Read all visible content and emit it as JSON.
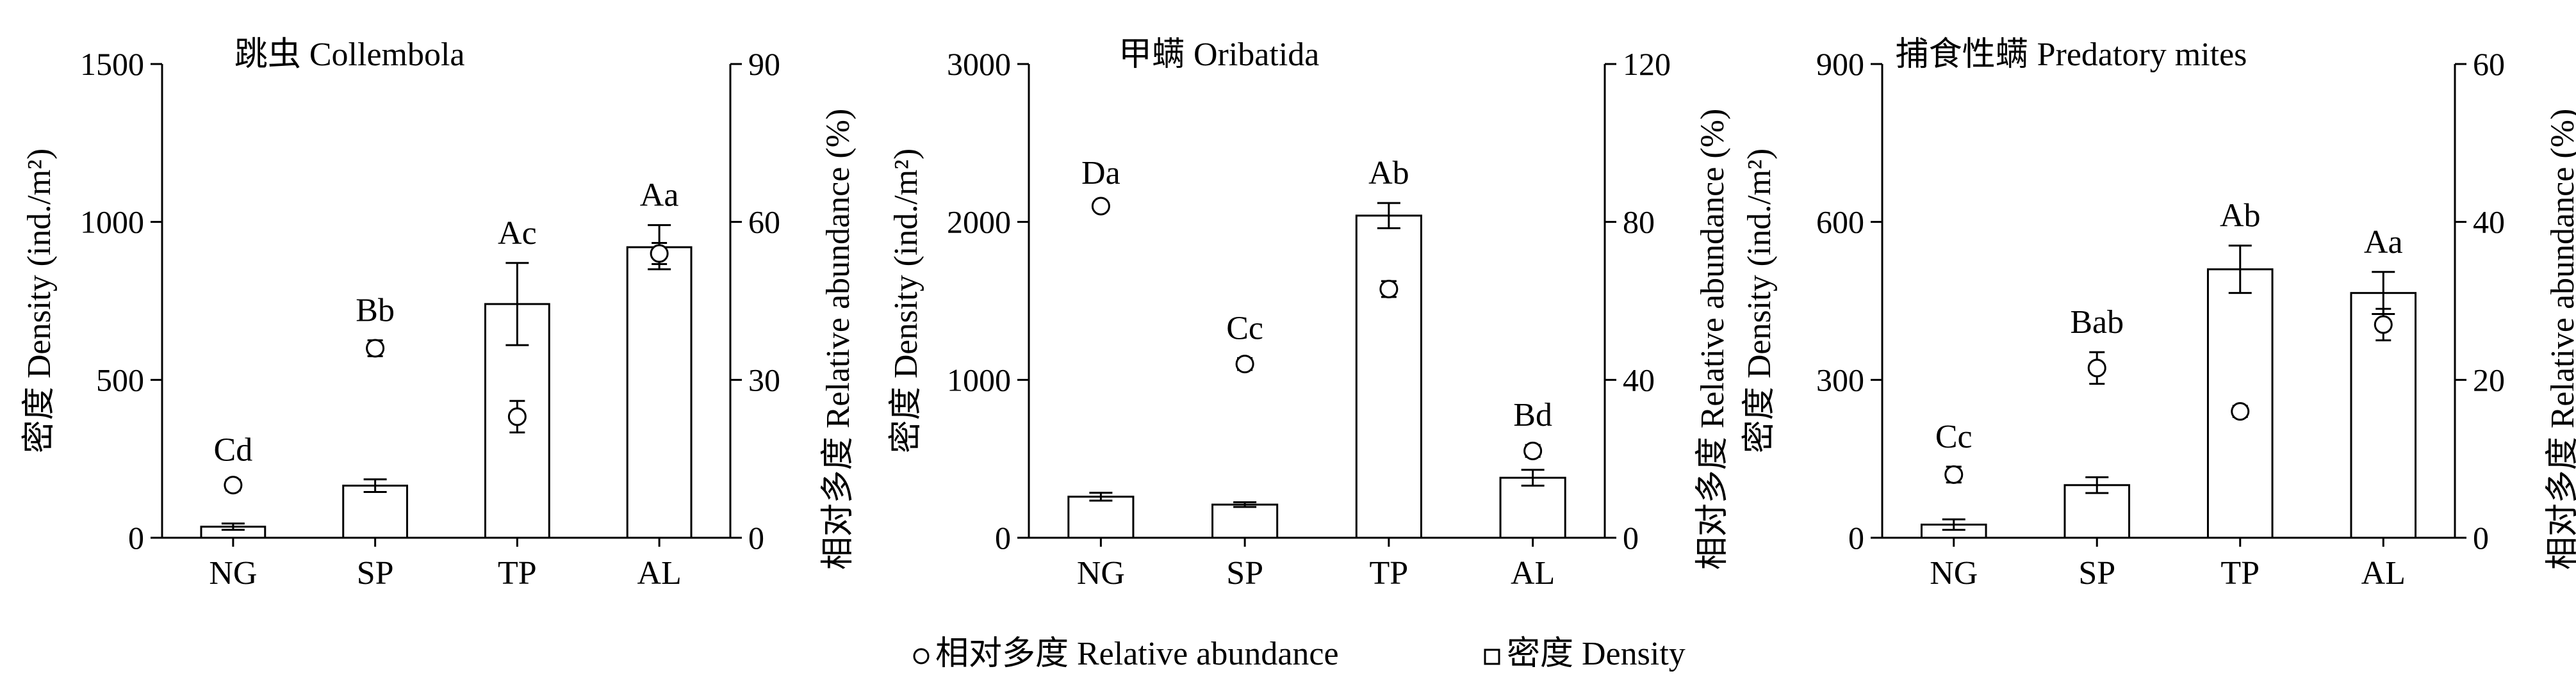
{
  "legend": {
    "abundance_label": "相对多度 Relative abundance",
    "density_label": "密度 Density"
  },
  "chart_data": [
    {
      "type": "bar",
      "title": "跳虫 Collembola",
      "categories": [
        "NG",
        "SP",
        "TP",
        "AL"
      ],
      "ylabel": "密度 Density (ind./m²)",
      "y2label": "相对多度 Relative abundance (%)",
      "ylim": [
        0,
        1500
      ],
      "yticks": [
        0,
        500,
        1000,
        1500
      ],
      "y2lim": [
        0,
        90
      ],
      "y2ticks": [
        0,
        30,
        60,
        90
      ],
      "grid": false,
      "series": [
        {
          "name": "密度 Density",
          "kind": "bar",
          "axis": "left",
          "values": [
            35,
            165,
            740,
            920
          ],
          "errors": [
            10,
            20,
            130,
            70
          ]
        },
        {
          "name": "相对多度 Relative abundance",
          "kind": "marker",
          "axis": "right",
          "values": [
            10,
            36,
            23,
            54
          ],
          "errors": [
            1,
            1.5,
            3,
            2
          ]
        }
      ],
      "annotations": [
        "Cd",
        "Bb",
        "Ac",
        "Aa"
      ]
    },
    {
      "type": "bar",
      "title": "甲螨 Oribatida",
      "categories": [
        "NG",
        "SP",
        "TP",
        "AL"
      ],
      "ylabel": "密度 Density (ind./m²)",
      "y2label": "相对多度 Relative abundance (%)",
      "ylim": [
        0,
        3000
      ],
      "yticks": [
        0,
        1000,
        2000,
        3000
      ],
      "y2lim": [
        0,
        120
      ],
      "y2ticks": [
        0,
        40,
        80,
        120
      ],
      "grid": false,
      "series": [
        {
          "name": "密度 Density",
          "kind": "bar",
          "axis": "left",
          "values": [
            260,
            210,
            2040,
            380
          ],
          "errors": [
            25,
            15,
            80,
            50
          ]
        },
        {
          "name": "相对多度 Relative abundance",
          "kind": "marker",
          "axis": "right",
          "values": [
            84,
            44,
            63,
            22
          ],
          "errors": [
            0.8,
            1.5,
            2,
            1.5
          ]
        }
      ],
      "annotations": [
        "Da",
        "Cc",
        "Ab",
        "Bd"
      ]
    },
    {
      "type": "bar",
      "title": "捕食性螨 Predatory mites",
      "categories": [
        "NG",
        "SP",
        "TP",
        "AL"
      ],
      "ylabel": "密度 Density (ind./m²)",
      "y2label": "相对多度 Relative abundance (%)",
      "ylim": [
        0,
        900
      ],
      "yticks": [
        0,
        300,
        600,
        900
      ],
      "y2lim": [
        0,
        60
      ],
      "y2ticks": [
        0,
        20,
        40,
        60
      ],
      "grid": false,
      "series": [
        {
          "name": "密度 Density",
          "kind": "bar",
          "axis": "left",
          "values": [
            25,
            100,
            510,
            465
          ],
          "errors": [
            10,
            15,
            45,
            40
          ]
        },
        {
          "name": "相对多度 Relative abundance",
          "kind": "marker",
          "axis": "right",
          "values": [
            8,
            21.5,
            16,
            27
          ],
          "errors": [
            1,
            2,
            0.7,
            2
          ]
        }
      ],
      "annotations": [
        "Cc",
        "Bab",
        "Ab",
        "Aa"
      ]
    }
  ]
}
